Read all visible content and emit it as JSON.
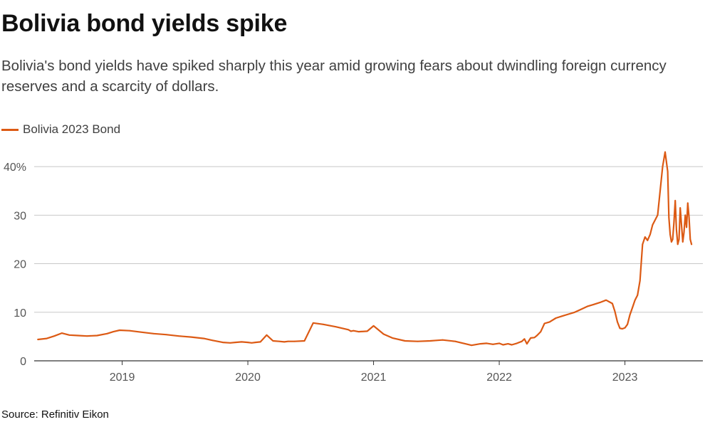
{
  "title": "Bolivia bond yields spike",
  "subtitle": "Bolivia's bond yields have spiked sharply this year amid growing fears about dwindling foreign currency reserves and a scarcity of dollars.",
  "source": "Source: Refinitiv Eikon",
  "colors": {
    "line": "#dc5a14",
    "grid": "#c8c8c8",
    "axis": "#333333",
    "tick_text": "#555555"
  },
  "chart_data": {
    "type": "line",
    "title": "Bolivia bond yields spike",
    "xlabel": "",
    "ylabel": "",
    "ylim": [
      0,
      45
    ],
    "xlim": [
      2018.3,
      2023.62
    ],
    "yticks": [
      {
        "value": 0,
        "label": "0"
      },
      {
        "value": 10,
        "label": "10"
      },
      {
        "value": 20,
        "label": "20"
      },
      {
        "value": 30,
        "label": "30"
      },
      {
        "value": 40,
        "label": "40%"
      }
    ],
    "xticks": [
      {
        "value": 2019,
        "label": "2019"
      },
      {
        "value": 2020,
        "label": "2020"
      },
      {
        "value": 2021,
        "label": "2021"
      },
      {
        "value": 2022,
        "label": "2022"
      },
      {
        "value": 2023,
        "label": "2023"
      }
    ],
    "grid": true,
    "legend_position": "top-left",
    "series": [
      {
        "name": "Bolivia 2023 Bond",
        "x": [
          2018.33,
          2018.4,
          2018.46,
          2018.52,
          2018.58,
          2018.65,
          2018.72,
          2018.8,
          2018.88,
          2018.93,
          2018.98,
          2019.06,
          2019.15,
          2019.25,
          2019.35,
          2019.45,
          2019.55,
          2019.65,
          2019.72,
          2019.8,
          2019.86,
          2019.9,
          2019.95,
          2020.0,
          2020.03,
          2020.06,
          2020.1,
          2020.15,
          2020.2,
          2020.25,
          2020.29,
          2020.32,
          2020.37,
          2020.45,
          2020.52,
          2020.6,
          2020.7,
          2020.8,
          2020.82,
          2020.84,
          2020.88,
          2020.95,
          2021.0,
          2021.08,
          2021.15,
          2021.25,
          2021.35,
          2021.45,
          2021.5,
          2021.55,
          2021.65,
          2021.7,
          2021.73,
          2021.78,
          2021.85,
          2021.9,
          2021.95,
          2022.0,
          2022.03,
          2022.07,
          2022.1,
          2022.14,
          2022.18,
          2022.2,
          2022.22,
          2022.25,
          2022.28,
          2022.3,
          2022.33,
          2022.36,
          2022.4,
          2022.45,
          2022.5,
          2022.55,
          2022.6,
          2022.65,
          2022.7,
          2022.75,
          2022.8,
          2022.85,
          2022.9,
          2022.92,
          2022.94,
          2022.96,
          2022.98,
          2023.0,
          2023.02,
          2023.04,
          2023.06,
          2023.08,
          2023.1,
          2023.12,
          2023.14,
          2023.16,
          2023.18,
          2023.2,
          2023.22,
          2023.26,
          2023.3,
          2023.32,
          2023.33,
          2023.34,
          2023.35,
          2023.36,
          2023.37,
          2023.38,
          2023.39,
          2023.4,
          2023.41,
          2023.42,
          2023.43,
          2023.44,
          2023.45,
          2023.46,
          2023.47,
          2023.48,
          2023.49,
          2023.5,
          2023.51,
          2023.52,
          2023.53
        ],
        "values": [
          4.4,
          4.6,
          5.1,
          5.7,
          5.3,
          5.2,
          5.1,
          5.2,
          5.6,
          6.0,
          6.3,
          6.2,
          5.9,
          5.6,
          5.4,
          5.1,
          4.9,
          4.6,
          4.2,
          3.8,
          3.7,
          3.8,
          3.9,
          3.8,
          3.7,
          3.8,
          3.9,
          5.3,
          4.1,
          4.0,
          3.9,
          4.0,
          4.0,
          4.1,
          7.8,
          7.5,
          7.0,
          6.4,
          6.1,
          6.2,
          6.0,
          6.1,
          7.2,
          5.5,
          4.7,
          4.1,
          4.0,
          4.1,
          4.2,
          4.3,
          4.0,
          3.7,
          3.5,
          3.2,
          3.5,
          3.6,
          3.4,
          3.6,
          3.3,
          3.5,
          3.3,
          3.6,
          4.0,
          4.5,
          3.5,
          4.7,
          4.8,
          5.2,
          6.0,
          7.7,
          8.0,
          8.8,
          9.2,
          9.6,
          10.0,
          10.6,
          11.2,
          11.6,
          12.0,
          12.5,
          11.8,
          10.2,
          8.0,
          6.7,
          6.6,
          6.8,
          7.5,
          9.5,
          11.0,
          12.5,
          13.5,
          16.5,
          24.0,
          25.5,
          24.8,
          26.0,
          28.0,
          30.0,
          40.0,
          43.0,
          41.0,
          39.0,
          29.5,
          26.0,
          24.5,
          25.0,
          28.5,
          33.0,
          27.0,
          24.0,
          25.0,
          31.5,
          28.0,
          24.5,
          26.5,
          30.0,
          27.5,
          32.5,
          29.5,
          25.0,
          24.0
        ]
      }
    ]
  }
}
